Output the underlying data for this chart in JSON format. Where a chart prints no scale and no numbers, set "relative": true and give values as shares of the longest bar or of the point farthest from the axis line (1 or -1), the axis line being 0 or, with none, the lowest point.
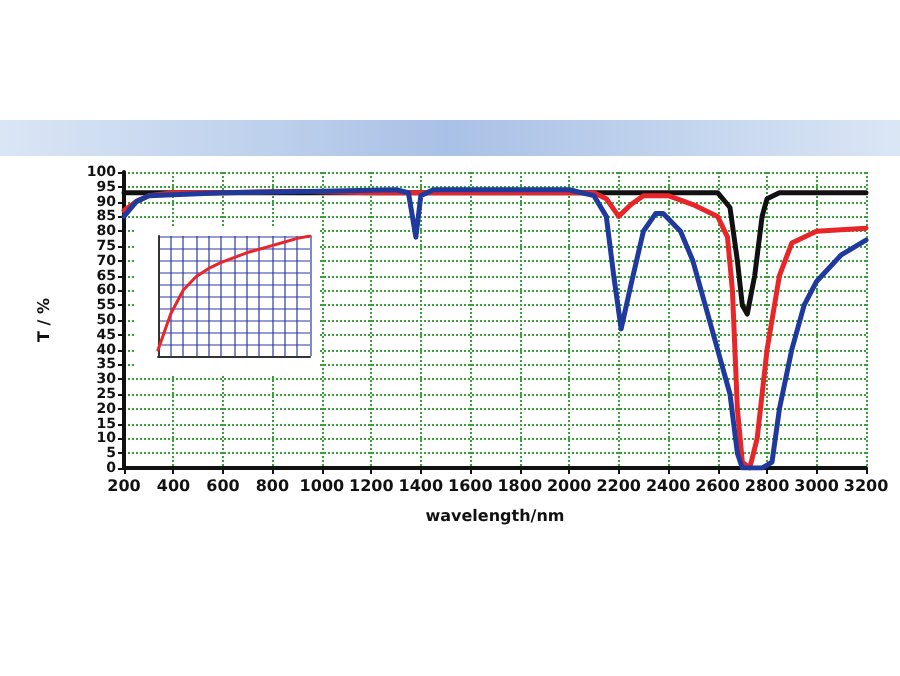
{
  "chart_data": [
    {
      "type": "line",
      "xlabel": "wavelength/nm",
      "ylabel": "T / %",
      "xlim": [
        200,
        3200
      ],
      "xticks": [
        200,
        400,
        600,
        800,
        1000,
        1200,
        1400,
        1600,
        1800,
        2000,
        2200,
        2400,
        2600,
        2800,
        3000,
        3200
      ],
      "ylim": [
        0,
        100
      ],
      "yticks": [
        0,
        5,
        10,
        15,
        20,
        25,
        30,
        35,
        40,
        45,
        50,
        55,
        60,
        65,
        70,
        75,
        80,
        85,
        90,
        95,
        100
      ],
      "grid": true,
      "marker": "none",
      "line_style": "solid",
      "series": [
        {
          "color": "#111111",
          "x": [
            200,
            600,
            1000,
            1400,
            1800,
            2200,
            2400,
            2600,
            2650,
            2680,
            2700,
            2720,
            2750,
            2780,
            2800,
            2850,
            3000,
            3200
          ],
          "values": [
            93,
            93,
            93,
            93,
            93,
            93,
            93,
            93,
            88,
            70,
            55,
            52,
            65,
            85,
            91,
            93,
            93,
            93
          ]
        },
        {
          "color": "#e8262a",
          "x": [
            200,
            250,
            300,
            400,
            600,
            900,
            1200,
            1400,
            1800,
            2100,
            2150,
            2200,
            2250,
            2300,
            2400,
            2500,
            2600,
            2640,
            2660,
            2680,
            2700,
            2730,
            2760,
            2800,
            2850,
            2900,
            3000,
            3200
          ],
          "values": [
            87,
            90,
            92,
            93,
            93,
            93.5,
            93,
            93,
            93,
            93,
            91,
            85,
            89,
            92,
            92,
            89,
            85,
            78,
            60,
            20,
            2,
            0,
            10,
            40,
            65,
            76,
            80,
            81
          ]
        },
        {
          "color": "#1f3a9c",
          "x": [
            200,
            250,
            300,
            600,
            1000,
            1300,
            1350,
            1380,
            1400,
            1450,
            2000,
            2100,
            2150,
            2180,
            2210,
            2250,
            2300,
            2350,
            2380,
            2450,
            2500,
            2550,
            2600,
            2650,
            2680,
            2700,
            2780,
            2820,
            2850,
            2900,
            2950,
            3000,
            3100,
            3200
          ],
          "values": [
            85,
            90,
            92,
            93,
            93.5,
            94,
            93,
            78,
            92,
            94,
            94,
            92,
            85,
            65,
            47,
            62,
            80,
            86,
            86,
            80,
            70,
            55,
            40,
            25,
            5,
            0,
            0,
            2,
            20,
            40,
            55,
            63,
            72,
            77
          ]
        }
      ]
    },
    {
      "type": "line",
      "relative": true,
      "categories": [
        null,
        null,
        null,
        null,
        null,
        null,
        null,
        null,
        null,
        null,
        null,
        null,
        null
      ],
      "grid": true,
      "marker": "none",
      "series": [
        {
          "color": "#e8262a",
          "values": [
            0.05,
            0.35,
            0.55,
            0.66,
            0.73,
            0.78,
            0.82,
            0.86,
            0.89,
            0.92,
            0.95,
            0.98,
            1
          ]
        }
      ]
    }
  ]
}
